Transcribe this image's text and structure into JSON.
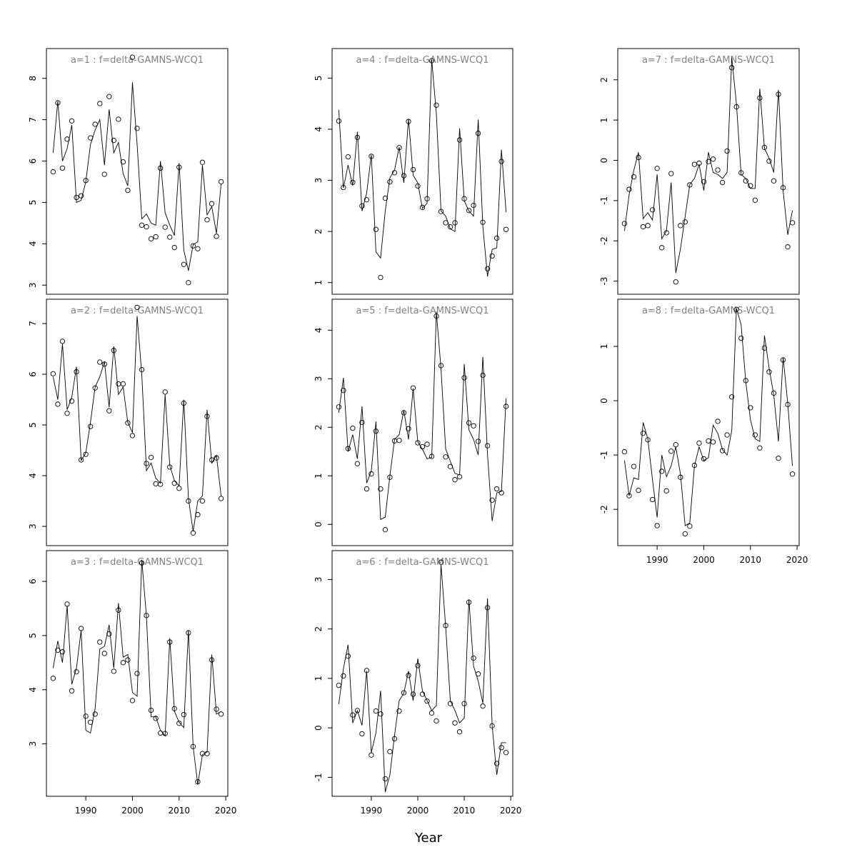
{
  "figure": {
    "xlabel": "Year"
  },
  "chart_data": [
    {
      "type": "scatter+line",
      "title": "a=1  :  f=delta-GAMNS-WCQ1",
      "xlim": [
        1983,
        2019
      ],
      "ylim": [
        3,
        8.5
      ],
      "yticks": [
        3,
        4,
        5,
        6,
        7,
        8
      ],
      "xticks": [
        1990,
        2000,
        2010,
        2020
      ],
      "x": [
        1983,
        1984,
        1985,
        1986,
        1987,
        1988,
        1989,
        1990,
        1991,
        1992,
        1993,
        1994,
        1995,
        1996,
        1997,
        1998,
        1999,
        2000,
        2001,
        2002,
        2003,
        2004,
        2005,
        2006,
        2007,
        2008,
        2009,
        2010,
        2011,
        2012,
        2013,
        2014,
        2015,
        2016,
        2017,
        2018,
        2019
      ],
      "points": [
        5.74,
        7.41,
        5.83,
        6.53,
        6.97,
        5.12,
        5.16,
        5.53,
        6.56,
        6.89,
        7.39,
        5.68,
        7.56,
        6.5,
        7.01,
        5.98,
        5.29,
        8.51,
        6.79,
        4.45,
        4.41,
        4.12,
        4.17,
        5.83,
        4.4,
        4.16,
        3.91,
        5.85,
        3.5,
        3.06,
        3.95,
        3.88,
        5.97,
        4.58,
        4.97,
        4.18,
        5.5
      ],
      "fitted": [
        6.2,
        7.45,
        6.0,
        6.3,
        6.87,
        5.0,
        5.05,
        5.5,
        6.4,
        6.75,
        7.0,
        5.9,
        7.25,
        6.2,
        6.45,
        5.7,
        5.4,
        7.9,
        6.4,
        4.6,
        4.72,
        4.5,
        4.45,
        6.0,
        4.75,
        4.45,
        4.2,
        5.95,
        3.85,
        3.35,
        3.98,
        4.05,
        5.9,
        4.7,
        4.9,
        4.25,
        5.45
      ]
    },
    {
      "type": "scatter+line",
      "title": "a=2  :  f=delta-GAMNS-WCQ1",
      "xlim": [
        1983,
        2019
      ],
      "ylim": [
        2.8,
        7.3
      ],
      "yticks": [
        3,
        4,
        5,
        6,
        7
      ],
      "xticks": [
        1990,
        2000,
        2010,
        2020
      ],
      "x": [
        1983,
        1984,
        1985,
        1986,
        1987,
        1988,
        1989,
        1990,
        1991,
        1992,
        1993,
        1994,
        1995,
        1996,
        1997,
        1998,
        1999,
        2000,
        2001,
        2002,
        2003,
        2004,
        2005,
        2006,
        2007,
        2008,
        2009,
        2010,
        2011,
        2012,
        2013,
        2014,
        2015,
        2016,
        2017,
        2018,
        2019
      ],
      "points": [
        6.01,
        5.41,
        6.65,
        5.23,
        5.47,
        6.05,
        4.31,
        4.42,
        4.97,
        5.73,
        6.24,
        6.2,
        5.28,
        6.47,
        5.81,
        5.81,
        5.04,
        4.79,
        7.32,
        6.09,
        4.24,
        4.36,
        3.84,
        3.83,
        5.65,
        4.17,
        3.85,
        3.75,
        5.43,
        3.5,
        2.87,
        3.23,
        3.5,
        5.17,
        4.31,
        4.35,
        3.55
      ],
      "fitted": [
        5.95,
        5.5,
        6.6,
        5.3,
        5.55,
        6.15,
        4.3,
        4.45,
        5.05,
        5.75,
        5.95,
        6.25,
        5.35,
        6.55,
        5.6,
        5.75,
        5.05,
        4.85,
        7.15,
        6.0,
        4.1,
        4.25,
        3.95,
        3.85,
        5.6,
        4.2,
        3.9,
        3.8,
        5.5,
        3.55,
        2.9,
        3.5,
        3.6,
        5.3,
        4.25,
        4.4,
        3.6
      ]
    },
    {
      "type": "scatter+line",
      "title": "a=3  :  f=delta-GAMNS-WCQ1",
      "xlim": [
        1983,
        2019
      ],
      "ylim": [
        2.2,
        6.4
      ],
      "yticks": [
        3,
        4,
        5,
        6
      ],
      "xticks": [
        1990,
        2000,
        2010,
        2020
      ],
      "x": [
        1983,
        1984,
        1985,
        1986,
        1987,
        1988,
        1989,
        1990,
        1991,
        1992,
        1993,
        1994,
        1995,
        1996,
        1997,
        1998,
        1999,
        2000,
        2001,
        2002,
        2003,
        2004,
        2005,
        2006,
        2007,
        2008,
        2009,
        2010,
        2011,
        2012,
        2013,
        2014,
        2015,
        2016,
        2017,
        2018,
        2019
      ],
      "points": [
        4.21,
        4.73,
        4.7,
        5.58,
        3.98,
        4.33,
        5.13,
        3.51,
        3.4,
        3.55,
        4.88,
        4.67,
        5.03,
        4.34,
        5.47,
        4.5,
        4.55,
        3.8,
        4.3,
        6.34,
        5.37,
        3.62,
        3.47,
        3.2,
        3.19,
        4.88,
        3.65,
        3.38,
        3.54,
        5.05,
        2.95,
        2.3,
        2.82,
        2.82,
        4.55,
        3.64,
        3.55
      ],
      "fitted": [
        4.4,
        4.9,
        4.5,
        5.55,
        4.1,
        4.4,
        5.1,
        3.25,
        3.2,
        3.65,
        4.75,
        4.8,
        5.2,
        4.4,
        5.6,
        4.6,
        4.65,
        3.95,
        3.88,
        6.4,
        5.35,
        3.5,
        3.5,
        3.25,
        3.15,
        4.95,
        3.6,
        3.4,
        3.3,
        5.1,
        2.95,
        2.25,
        2.8,
        2.85,
        4.65,
        3.55,
        3.6
      ]
    },
    {
      "type": "scatter+line",
      "title": "a=4  :  f=delta-GAMNS-WCQ1",
      "xlim": [
        1983,
        2019
      ],
      "ylim": [
        0.95,
        5.4
      ],
      "yticks": [
        1,
        2,
        3,
        4,
        5
      ],
      "xticks": [
        1990,
        2000,
        2010,
        2020
      ],
      "x": [
        1983,
        1984,
        1985,
        1986,
        1987,
        1988,
        1989,
        1990,
        1991,
        1992,
        1993,
        1994,
        1995,
        1996,
        1997,
        1998,
        1999,
        2000,
        2001,
        2002,
        2003,
        2004,
        2005,
        2006,
        2007,
        2008,
        2009,
        2010,
        2011,
        2012,
        2013,
        2014,
        2015,
        2016,
        2017,
        2018,
        2019
      ],
      "points": [
        4.16,
        2.86,
        3.46,
        2.96,
        3.84,
        2.5,
        2.62,
        3.47,
        2.04,
        1.1,
        2.65,
        2.97,
        3.15,
        3.64,
        3.09,
        4.15,
        3.21,
        2.89,
        2.47,
        2.64,
        5.34,
        4.47,
        2.39,
        2.17,
        2.09,
        2.17,
        3.79,
        2.64,
        2.41,
        2.51,
        3.92,
        2.18,
        1.27,
        1.52,
        1.87,
        3.37,
        2.04
      ],
      "fitted": [
        4.38,
        2.85,
        3.3,
        2.9,
        3.95,
        2.4,
        2.75,
        3.5,
        1.6,
        1.48,
        2.4,
        3.05,
        3.2,
        3.65,
        2.95,
        4.2,
        3.1,
        2.95,
        2.45,
        2.55,
        5.36,
        4.3,
        2.4,
        2.3,
        2.05,
        2.0,
        4.02,
        2.6,
        2.4,
        2.3,
        4.19,
        2.1,
        1.12,
        1.65,
        1.68,
        3.6,
        2.38
      ]
    },
    {
      "type": "scatter+line",
      "title": "a=5  :  f=delta-GAMNS-WCQ1",
      "xlim": [
        1983,
        2019
      ],
      "ylim": [
        -0.25,
        4.45
      ],
      "yticks": [
        0,
        1,
        2,
        3,
        4
      ],
      "xticks": [
        1990,
        2000,
        2010,
        2020
      ],
      "x": [
        1983,
        1984,
        1985,
        1986,
        1987,
        1988,
        1989,
        1990,
        1991,
        1992,
        1993,
        1994,
        1995,
        1996,
        1997,
        1998,
        1999,
        2000,
        2001,
        2002,
        2003,
        2004,
        2005,
        2006,
        2007,
        2008,
        2009,
        2010,
        2011,
        2012,
        2013,
        2014,
        2015,
        2016,
        2017,
        2018,
        2019
      ],
      "points": [
        2.42,
        2.76,
        1.56,
        1.98,
        1.25,
        2.1,
        0.73,
        1.04,
        1.92,
        0.73,
        -0.11,
        0.97,
        1.72,
        1.73,
        2.3,
        1.97,
        2.81,
        1.68,
        1.6,
        1.65,
        1.4,
        4.29,
        3.27,
        1.39,
        1.19,
        0.92,
        0.98,
        3.02,
        2.09,
        2.03,
        1.71,
        3.07,
        1.62,
        0.5,
        0.73,
        0.65,
        2.43
      ],
      "fitted": [
        2.3,
        3.02,
        1.5,
        1.85,
        1.35,
        2.43,
        0.85,
        1.1,
        2.12,
        0.1,
        0.15,
        1.0,
        1.75,
        1.85,
        2.35,
        1.75,
        2.8,
        1.7,
        1.55,
        1.35,
        1.38,
        4.38,
        3.2,
        1.55,
        1.3,
        1.05,
        1.02,
        3.3,
        1.95,
        1.75,
        1.43,
        3.45,
        1.45,
        0.07,
        0.65,
        0.68,
        2.6
      ]
    },
    {
      "type": "scatter+line",
      "title": "a=6  :  f=delta-GAMNS-WCQ1",
      "xlim": [
        1983,
        2019
      ],
      "ylim": [
        -1.2,
        3.4
      ],
      "yticks": [
        -1,
        0,
        1,
        2,
        3
      ],
      "xticks": [
        1990,
        2000,
        2010,
        2020
      ],
      "x": [
        1983,
        1984,
        1985,
        1986,
        1987,
        1988,
        1989,
        1990,
        1991,
        1992,
        1993,
        1994,
        1995,
        1996,
        1997,
        1998,
        1999,
        2000,
        2001,
        2002,
        2003,
        2004,
        2005,
        2006,
        2007,
        2008,
        2009,
        2010,
        2011,
        2012,
        2013,
        2014,
        2015,
        2016,
        2017,
        2018,
        2019
      ],
      "points": [
        0.86,
        1.05,
        1.45,
        0.26,
        0.35,
        -0.12,
        1.16,
        -0.55,
        0.34,
        0.28,
        -1.03,
        -0.48,
        -0.22,
        0.34,
        0.71,
        1.06,
        0.68,
        1.26,
        0.68,
        0.54,
        0.3,
        0.14,
        3.35,
        2.07,
        0.49,
        0.1,
        -0.08,
        0.49,
        2.54,
        1.41,
        1.09,
        0.44,
        2.43,
        0.04,
        -0.72,
        -0.4,
        -0.5
      ],
      "fitted": [
        0.48,
        1.2,
        1.68,
        0.1,
        0.35,
        0.05,
        1.15,
        -0.5,
        -0.1,
        0.75,
        -1.3,
        -0.95,
        -0.15,
        0.55,
        0.7,
        1.15,
        0.55,
        1.4,
        0.75,
        0.55,
        0.35,
        0.45,
        3.3,
        2.05,
        0.55,
        0.35,
        0.1,
        0.2,
        2.6,
        1.25,
        0.95,
        0.5,
        2.62,
        0.05,
        -0.95,
        -0.3,
        -0.3
      ]
    },
    {
      "type": "scatter+line",
      "title": "a=7  :  f=delta-GAMNS-WCQ1",
      "xlim": [
        1983,
        2019
      ],
      "ylim": [
        -3.1,
        2.55
      ],
      "yticks": [
        -3,
        -2,
        -1,
        0,
        1,
        2
      ],
      "xticks": [
        1990,
        2000,
        2010,
        2020
      ],
      "x": [
        1983,
        1984,
        1985,
        1986,
        1987,
        1988,
        1989,
        1990,
        1991,
        1992,
        1993,
        1994,
        1995,
        1996,
        1997,
        1998,
        1999,
        2000,
        2001,
        2002,
        2003,
        2004,
        2005,
        2006,
        2007,
        2008,
        2009,
        2010,
        2011,
        2012,
        2013,
        2014,
        2015,
        2016,
        2017,
        2018,
        2019
      ],
      "points": [
        -1.57,
        -0.72,
        -0.41,
        0.07,
        -1.65,
        -1.62,
        -1.23,
        -0.2,
        -2.17,
        -1.8,
        -0.33,
        -3.02,
        -1.62,
        -1.53,
        -0.61,
        -0.1,
        -0.07,
        -0.53,
        -0.03,
        0.03,
        -0.24,
        -0.55,
        0.23,
        2.3,
        1.33,
        -0.31,
        -0.51,
        -0.63,
        -0.99,
        1.55,
        0.32,
        -0.02,
        -0.51,
        1.64,
        -0.68,
        -2.15,
        -1.55
      ],
      "fitted": [
        -1.75,
        -0.85,
        -0.25,
        0.2,
        -1.45,
        -1.3,
        -1.48,
        -0.35,
        -1.95,
        -1.75,
        -0.55,
        -2.8,
        -2.2,
        -1.4,
        -0.6,
        -0.45,
        -0.1,
        -0.75,
        0.2,
        -0.3,
        -0.35,
        -0.45,
        -0.3,
        2.55,
        1.4,
        -0.35,
        -0.45,
        -0.7,
        -0.7,
        1.78,
        0.3,
        0.05,
        -0.3,
        1.75,
        -0.75,
        -1.85,
        -1.25
      ]
    },
    {
      "type": "scatter+line",
      "title": "a=8  :  f=delta-GAMNS-WCQ1",
      "xlim": [
        1983,
        2019
      ],
      "ylim": [
        -2.5,
        1.7
      ],
      "yticks": [
        -2,
        -1,
        0,
        1
      ],
      "xticks": [
        1990,
        2000,
        2010,
        2020
      ],
      "x": [
        1983,
        1984,
        1985,
        1986,
        1987,
        1988,
        1989,
        1990,
        1991,
        1992,
        1993,
        1994,
        1995,
        1996,
        1997,
        1998,
        1999,
        2000,
        2001,
        2002,
        2003,
        2004,
        2005,
        2006,
        2007,
        2008,
        2009,
        2010,
        2011,
        2012,
        2013,
        2014,
        2015,
        2016,
        2017,
        2018,
        2019
      ],
      "points": [
        -0.94,
        -1.75,
        -1.21,
        -1.65,
        -0.6,
        -0.72,
        -1.82,
        -2.3,
        -1.3,
        -1.66,
        -0.93,
        -0.81,
        -1.41,
        -2.45,
        -2.31,
        -1.19,
        -0.78,
        -1.07,
        -0.74,
        -0.76,
        -0.38,
        -0.92,
        -0.63,
        0.07,
        1.68,
        1.15,
        0.37,
        -0.13,
        -0.63,
        -0.87,
        0.97,
        0.53,
        0.14,
        -1.06,
        0.75,
        -0.07,
        -1.35
      ],
      "fitted": [
        -1.1,
        -1.75,
        -1.42,
        -1.45,
        -0.4,
        -0.7,
        -1.45,
        -2.15,
        -1.0,
        -1.4,
        -1.2,
        -0.85,
        -1.35,
        -2.3,
        -2.25,
        -1.2,
        -0.85,
        -1.1,
        -1.05,
        -0.45,
        -0.6,
        -0.9,
        -1.0,
        -0.55,
        1.7,
        1.4,
        0.35,
        -0.35,
        -0.7,
        -0.75,
        1.2,
        0.6,
        0.1,
        -0.75,
        0.8,
        -0.05,
        -1.2
      ]
    }
  ]
}
